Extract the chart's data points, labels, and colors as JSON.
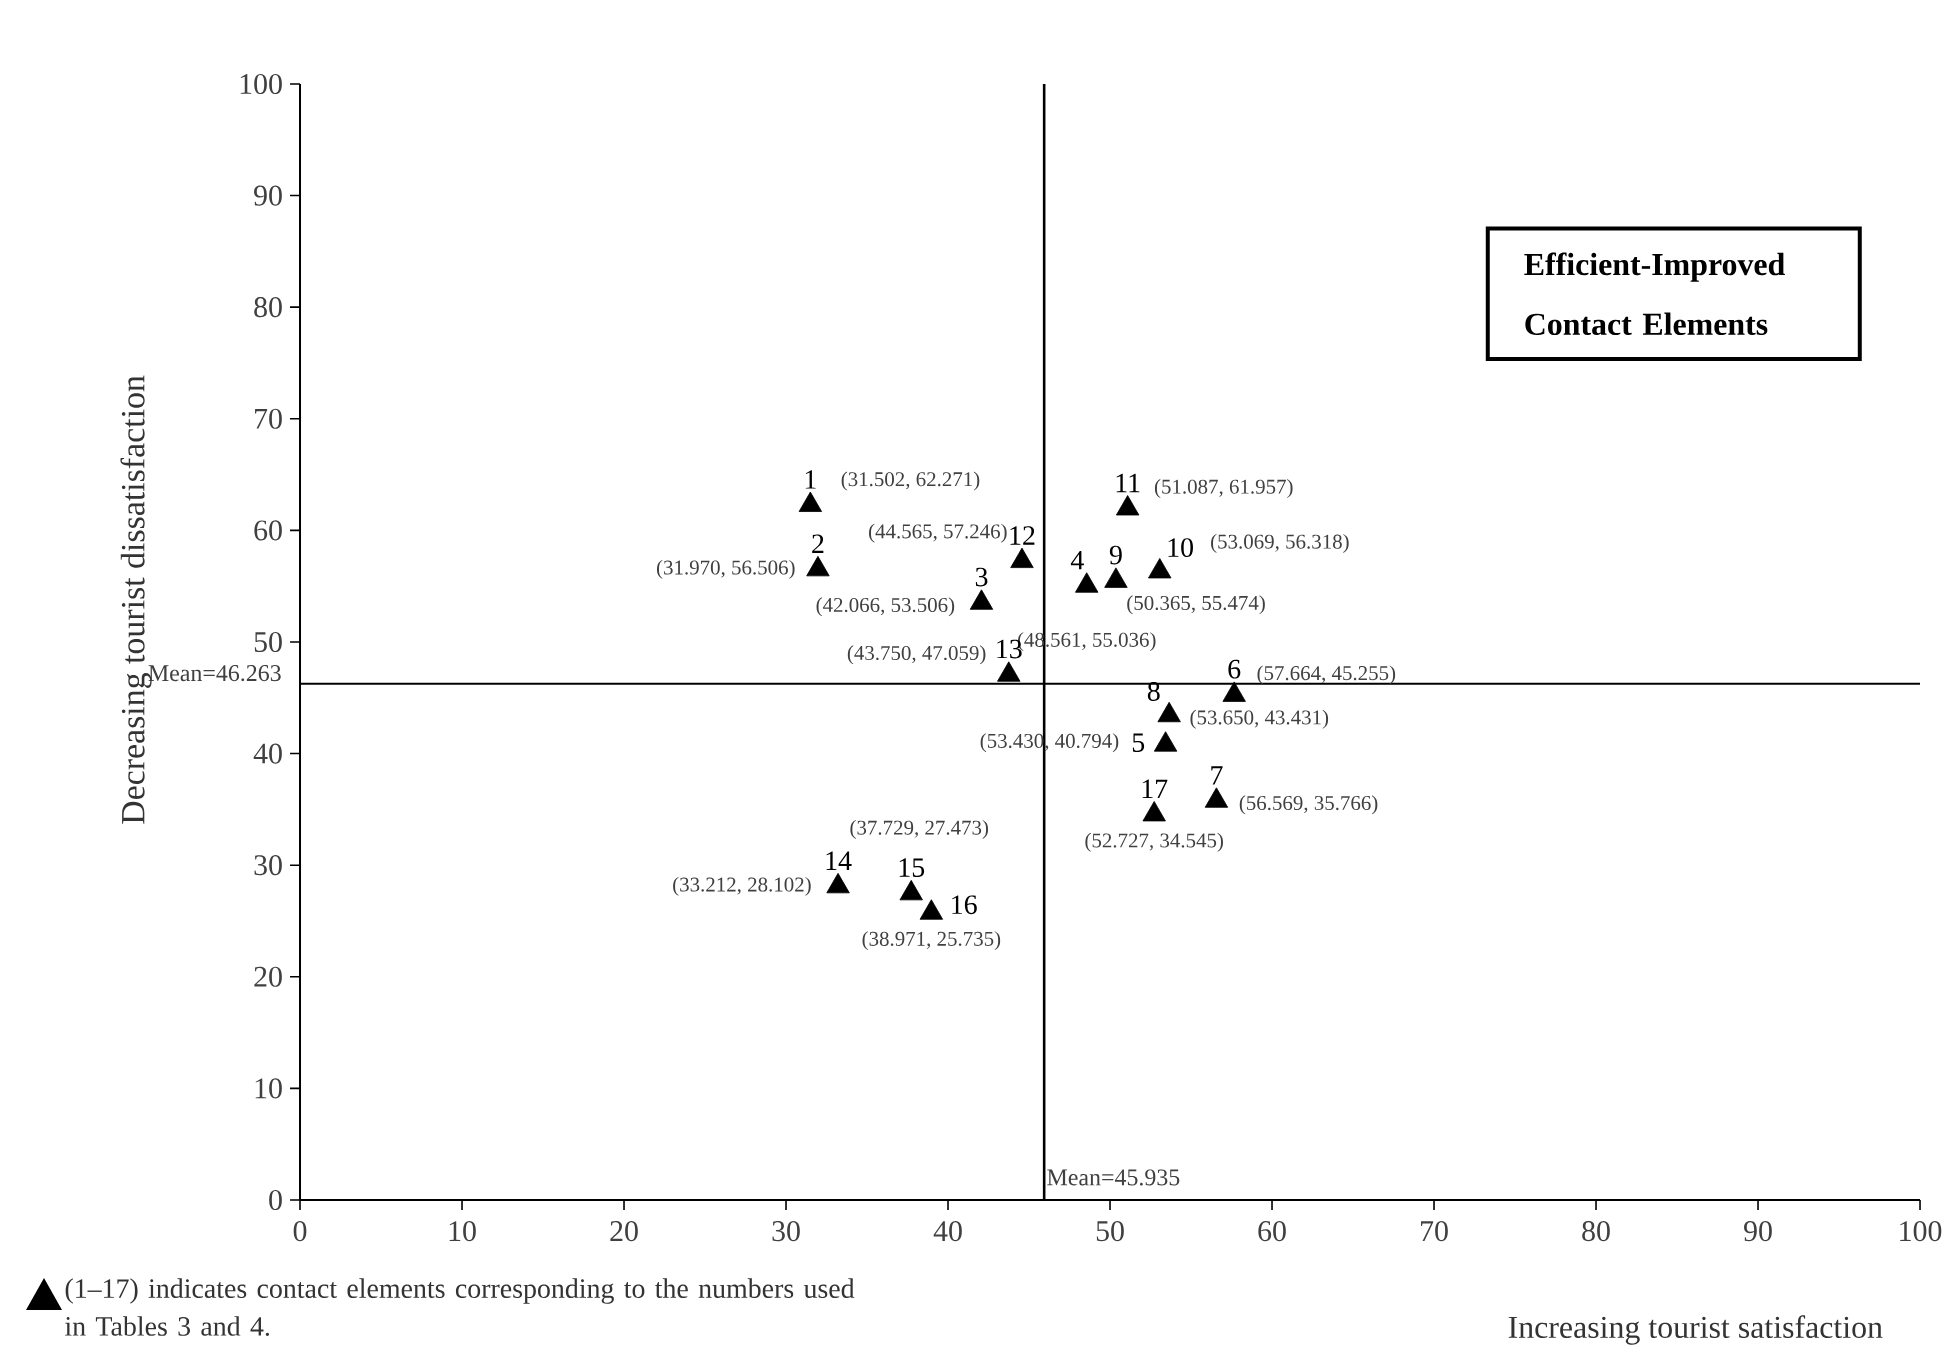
{
  "chart_data": {
    "type": "scatter",
    "xlabel": "Increasing tourist satisfaction",
    "ylabel": "Decreasing tourist dissatisfaction",
    "x": [
      31.502,
      31.97,
      42.066,
      48.561,
      53.43,
      57.664,
      56.569,
      53.65,
      50.365,
      53.069,
      51.087,
      44.565,
      43.75,
      33.212,
      37.729,
      38.971,
      52.727
    ],
    "values": [
      62.271,
      56.506,
      53.506,
      55.036,
      40.794,
      45.255,
      35.766,
      43.431,
      55.474,
      56.318,
      61.957,
      57.246,
      47.059,
      28.102,
      27.473,
      25.735,
      34.545
    ],
    "color": "#000000",
    "marker": "triangle",
    "xlim": [
      0,
      100
    ],
    "ylim": [
      0,
      100
    ],
    "xticks": [
      0,
      10,
      20,
      30,
      40,
      50,
      60,
      70,
      80,
      90,
      100
    ],
    "yticks": [
      0,
      10,
      20,
      30,
      40,
      50,
      60,
      70,
      80,
      90,
      100
    ],
    "grid": false,
    "ref_lines": [
      {
        "axis": "y",
        "value": 46.263,
        "label": "Mean=46.263"
      },
      {
        "axis": "x",
        "value": 45.935,
        "label": "Mean=45.935"
      }
    ],
    "annotations": [
      "Efficient-Improved Contact Elements",
      "(1–17) indicates contact elements corresponding to the numbers used in Tables 3 and 4.",
      {
        "text": "1",
        "x": 31.502,
        "y": 62.271
      },
      {
        "text": "(31.502, 62.271)",
        "x": 31.502,
        "y": 62.271
      },
      {
        "text": "2",
        "x": 31.97,
        "y": 56.506
      },
      {
        "text": "(31.970, 56.506)",
        "x": 31.97,
        "y": 56.506
      },
      {
        "text": "3",
        "x": 42.066,
        "y": 53.506
      },
      {
        "text": "(42.066, 53.506)",
        "x": 42.066,
        "y": 53.506
      },
      {
        "text": "4",
        "x": 48.561,
        "y": 55.036
      },
      {
        "text": "(48.561, 55.036)",
        "x": 48.561,
        "y": 55.036
      },
      {
        "text": "5",
        "x": 53.43,
        "y": 40.794
      },
      {
        "text": "(53.430, 40.794)",
        "x": 53.43,
        "y": 40.794
      },
      {
        "text": "6",
        "x": 57.664,
        "y": 45.255
      },
      {
        "text": "(57.664, 45.255)",
        "x": 57.664,
        "y": 45.255
      },
      {
        "text": "7",
        "x": 56.569,
        "y": 35.766
      },
      {
        "text": "(56.569, 35.766)",
        "x": 56.569,
        "y": 35.766
      },
      {
        "text": "8",
        "x": 53.65,
        "y": 43.431
      },
      {
        "text": "(53.650, 43.431)",
        "x": 53.65,
        "y": 43.431
      },
      {
        "text": "9",
        "x": 50.365,
        "y": 55.474
      },
      {
        "text": "(50.365, 55.474)",
        "x": 50.365,
        "y": 55.474
      },
      {
        "text": "10",
        "x": 53.069,
        "y": 56.318
      },
      {
        "text": "(53.069, 56.318)",
        "x": 53.069,
        "y": 56.318
      },
      {
        "text": "11",
        "x": 51.087,
        "y": 61.957
      },
      {
        "text": "(51.087, 61.957)",
        "x": 51.087,
        "y": 61.957
      },
      {
        "text": "12",
        "x": 44.565,
        "y": 57.246
      },
      {
        "text": "(44.565, 57.246)",
        "x": 44.565,
        "y": 57.246
      },
      {
        "text": "13",
        "x": 43.75,
        "y": 47.059
      },
      {
        "text": "(43.750, 47.059)",
        "x": 43.75,
        "y": 47.059
      },
      {
        "text": "14",
        "x": 33.212,
        "y": 28.102
      },
      {
        "text": "(33.212, 28.102)",
        "x": 33.212,
        "y": 28.102
      },
      {
        "text": "15",
        "x": 37.729,
        "y": 27.473
      },
      {
        "text": "(37.729, 27.473)",
        "x": 37.729,
        "y": 27.473
      },
      {
        "text": "16",
        "x": 38.971,
        "y": 25.735
      },
      {
        "text": "(38.971, 25.735)",
        "x": 38.971,
        "y": 25.735
      },
      {
        "text": "17",
        "x": 52.727,
        "y": 34.545
      },
      {
        "text": "(52.727, 34.545)",
        "x": 52.727,
        "y": 34.545
      }
    ]
  }
}
